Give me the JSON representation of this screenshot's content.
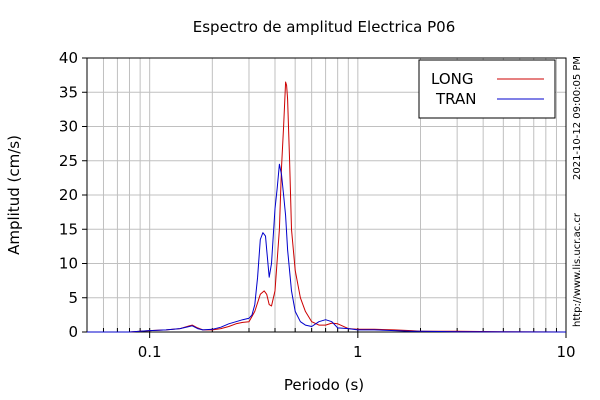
{
  "side_text": {
    "timestamp": "2021-10-12 09:00:05 PM",
    "url": "http://www.lis.ucr.ac.cr"
  },
  "chart_data": {
    "type": "line",
    "title": "Espectro de amplitud Electrica P06",
    "xlabel": "Periodo (s)",
    "ylabel": "Amplitud (cm/s)",
    "xscale": "log",
    "xlim": [
      0.05,
      10
    ],
    "ylim": [
      0,
      40
    ],
    "xticks": [
      0.1,
      1,
      10
    ],
    "xtick_labels": [
      "0.1",
      "1",
      "10"
    ],
    "yticks": [
      0,
      5,
      10,
      15,
      20,
      25,
      30,
      35,
      40
    ],
    "ytick_labels": [
      "0",
      "5",
      "10",
      "15",
      "20",
      "25",
      "30",
      "35",
      "40"
    ],
    "grid": true,
    "legend_position": "top-right",
    "series": [
      {
        "name": "LONG",
        "color": "#cc0000",
        "x": [
          0.05,
          0.08,
          0.09,
          0.1,
          0.12,
          0.14,
          0.155,
          0.16,
          0.17,
          0.18,
          0.2,
          0.22,
          0.24,
          0.26,
          0.28,
          0.3,
          0.32,
          0.34,
          0.355,
          0.365,
          0.375,
          0.385,
          0.4,
          0.42,
          0.43,
          0.44,
          0.45,
          0.455,
          0.46,
          0.47,
          0.48,
          0.5,
          0.53,
          0.56,
          0.6,
          0.65,
          0.7,
          0.75,
          0.8,
          0.9,
          1.0,
          1.2,
          1.5,
          1.8,
          2.0,
          3.0,
          5.0,
          10.0
        ],
        "y": [
          0,
          0,
          0.1,
          0.2,
          0.3,
          0.5,
          0.9,
          1.0,
          0.6,
          0.3,
          0.3,
          0.5,
          0.8,
          1.2,
          1.4,
          1.5,
          3.0,
          5.5,
          6.0,
          5.5,
          4.0,
          3.8,
          6.0,
          15.0,
          24.0,
          30.0,
          36.5,
          36.0,
          34.0,
          25.0,
          15.0,
          9.0,
          5.0,
          3.0,
          1.5,
          1.0,
          1.0,
          1.3,
          1.2,
          0.5,
          0.4,
          0.4,
          0.3,
          0.2,
          0.1,
          0.1,
          0.05,
          0
        ]
      },
      {
        "name": "TRAN",
        "color": "#0000cc",
        "x": [
          0.05,
          0.08,
          0.09,
          0.1,
          0.12,
          0.14,
          0.155,
          0.16,
          0.17,
          0.18,
          0.2,
          0.22,
          0.24,
          0.26,
          0.28,
          0.3,
          0.31,
          0.32,
          0.33,
          0.34,
          0.35,
          0.36,
          0.365,
          0.375,
          0.385,
          0.4,
          0.41,
          0.42,
          0.43,
          0.44,
          0.45,
          0.46,
          0.48,
          0.5,
          0.53,
          0.56,
          0.6,
          0.65,
          0.7,
          0.75,
          0.8,
          0.9,
          1.0,
          1.2,
          1.5,
          1.8,
          2.0,
          3.0,
          5.0,
          10.0
        ],
        "y": [
          0,
          0,
          0.1,
          0.2,
          0.3,
          0.5,
          0.8,
          0.9,
          0.5,
          0.3,
          0.4,
          0.7,
          1.2,
          1.5,
          1.8,
          2.0,
          2.5,
          4.0,
          8.0,
          13.5,
          14.5,
          14.0,
          12.0,
          8.0,
          10.0,
          18.0,
          21.0,
          24.5,
          23.0,
          20.0,
          17.0,
          12.0,
          6.0,
          3.0,
          1.5,
          1.0,
          0.8,
          1.5,
          1.8,
          1.5,
          0.6,
          0.5,
          0.3,
          0.3,
          0.2,
          0.1,
          0.1,
          0.05,
          0.02,
          0
        ]
      }
    ]
  }
}
